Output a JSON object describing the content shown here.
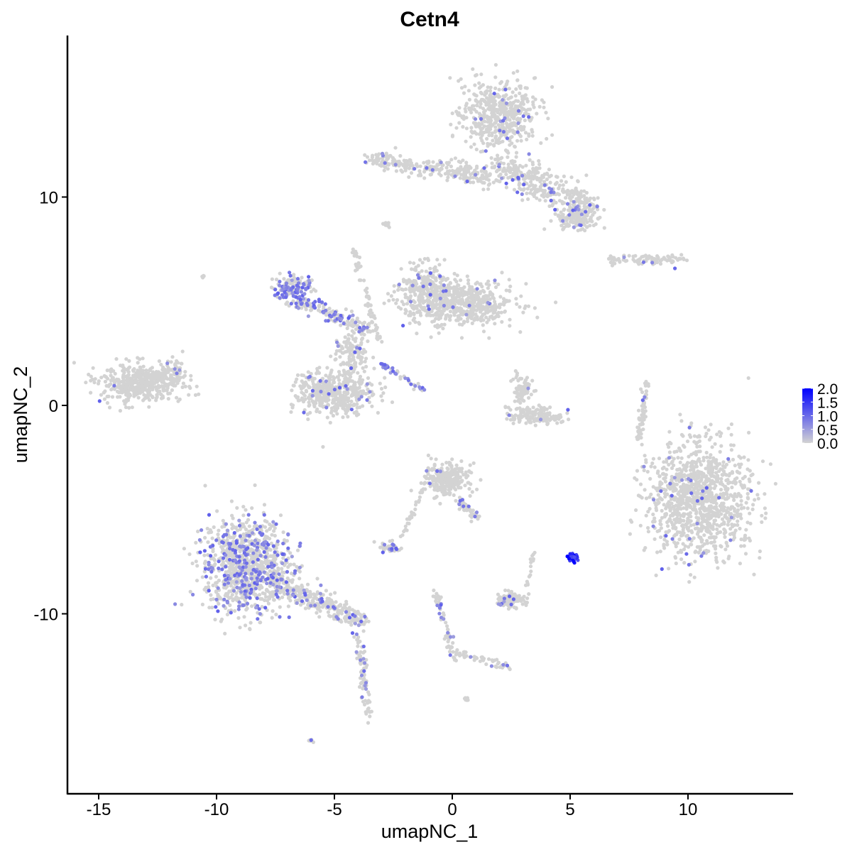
{
  "chart_data": {
    "type": "scatter",
    "title": "Cetn4",
    "xlabel": "umapNC_1",
    "ylabel": "umapNC_2",
    "xlim": [
      -16.3,
      14.4
    ],
    "ylim": [
      -18.6,
      17.8
    ],
    "x_ticks": [
      -15,
      -10,
      -5,
      0,
      5,
      10
    ],
    "x_tick_labels": [
      "-15",
      "-10",
      "-5",
      "0",
      "5",
      "10"
    ],
    "y_ticks": [
      -10,
      0,
      10
    ],
    "y_tick_labels": [
      "-10",
      "0",
      "10"
    ],
    "grid": false,
    "color_scale": {
      "low": "#d3d3d3",
      "high": "#0000ff",
      "min": 0,
      "max": 2.0,
      "ticks": [
        0,
        0.5,
        1.0,
        1.5,
        2.0
      ],
      "tick_labels": [
        "0.0",
        "0.5",
        "1.0",
        "1.5",
        "2.0"
      ]
    },
    "legend_placement": "right",
    "cell_regions": [
      {
        "center": [
          1.9,
          14.0
        ],
        "spread": [
          1.3,
          1.4
        ],
        "n": 500,
        "expr_frac": 0.03
      },
      {
        "from": [
          -3.5,
          11.8
        ],
        "to": [
          1.5,
          11.0
        ],
        "width": 0.45,
        "n": 260,
        "expr_frac": 0.03
      },
      {
        "from": [
          2.0,
          11.6
        ],
        "to": [
          5.8,
          9.4
        ],
        "width": 0.8,
        "n": 360,
        "expr_frac": 0.05
      },
      {
        "center": [
          5.3,
          9.0
        ],
        "spread": [
          0.7,
          0.6
        ],
        "n": 120,
        "expr_frac": 0.05
      },
      {
        "center": [
          -2.8,
          8.7
        ],
        "spread": [
          0.15,
          0.15
        ],
        "n": 10,
        "expr_frac": 0
      },
      {
        "from": [
          6.7,
          7.0
        ],
        "to": [
          9.9,
          7.0
        ],
        "width": 0.25,
        "n": 90,
        "expr_frac": 0.02
      },
      {
        "center": [
          0.3,
          4.9
        ],
        "spread": [
          1.9,
          0.9
        ],
        "n": 600,
        "expr_frac": 0.02
      },
      {
        "center": [
          -1.0,
          5.6
        ],
        "spread": [
          0.9,
          1.0
        ],
        "n": 200,
        "expr_frac": 0.03
      },
      {
        "from": [
          -4.2,
          7.5
        ],
        "to": [
          -3.1,
          3.0
        ],
        "width": 0.2,
        "n": 60,
        "expr_frac": 0
      },
      {
        "center": [
          -6.8,
          5.6
        ],
        "spread": [
          0.6,
          0.5
        ],
        "n": 160,
        "expr_frac": 0.4
      },
      {
        "from": [
          -6.5,
          5.0
        ],
        "to": [
          -3.5,
          3.6
        ],
        "width": 0.35,
        "n": 150,
        "expr_frac": 0.25
      },
      {
        "from": [
          -3.0,
          2.0
        ],
        "to": [
          -1.2,
          0.7
        ],
        "width": 0.15,
        "n": 40,
        "expr_frac": 0.5
      },
      {
        "center": [
          -5.0,
          0.6
        ],
        "spread": [
          1.4,
          0.9
        ],
        "n": 450,
        "expr_frac": 0.04
      },
      {
        "center": [
          -4.3,
          2.5
        ],
        "spread": [
          0.6,
          0.8
        ],
        "n": 120,
        "expr_frac": 0.05
      },
      {
        "center": [
          -13.2,
          1.1
        ],
        "spread": [
          1.4,
          0.75
        ],
        "n": 450,
        "expr_frac": 0.01
      },
      {
        "center": [
          -11.8,
          1.6
        ],
        "spread": [
          0.5,
          0.5
        ],
        "n": 60,
        "expr_frac": 0.05
      },
      {
        "center": [
          3.5,
          -0.5
        ],
        "spread": [
          1.0,
          0.35
        ],
        "n": 150,
        "expr_frac": 0.01
      },
      {
        "center": [
          3.0,
          0.8
        ],
        "spread": [
          0.35,
          0.6
        ],
        "n": 80,
        "expr_frac": 0.02
      },
      {
        "from": [
          7.9,
          -1.6
        ],
        "to": [
          8.3,
          1.2
        ],
        "width": 0.15,
        "n": 60,
        "expr_frac": 0.02
      },
      {
        "center": [
          10.5,
          -4.6
        ],
        "spread": [
          1.8,
          2.3
        ],
        "n": 1100,
        "expr_frac": 0.02
      },
      {
        "center": [
          -0.3,
          -3.6
        ],
        "spread": [
          0.8,
          0.7
        ],
        "n": 250,
        "expr_frac": 0.02
      },
      {
        "from": [
          0.3,
          -4.5
        ],
        "to": [
          1.1,
          -5.5
        ],
        "width": 0.2,
        "n": 50,
        "expr_frac": 0.1
      },
      {
        "center": [
          -2.6,
          -6.8
        ],
        "spread": [
          0.35,
          0.2
        ],
        "n": 50,
        "expr_frac": 0.2
      },
      {
        "from": [
          -2.2,
          -6.5
        ],
        "to": [
          -1.2,
          -4.0
        ],
        "width": 0.12,
        "n": 30,
        "expr_frac": 0
      },
      {
        "center": [
          -8.7,
          -7.7
        ],
        "spread": [
          1.5,
          1.8
        ],
        "n": 1000,
        "expr_frac": 0.2
      },
      {
        "from": [
          -7.5,
          -8.5
        ],
        "to": [
          -3.8,
          -10.4
        ],
        "width": 0.5,
        "n": 300,
        "expr_frac": 0.12
      },
      {
        "from": [
          -4.0,
          -11.0
        ],
        "to": [
          -3.5,
          -15.0
        ],
        "width": 0.2,
        "n": 80,
        "expr_frac": 0.15
      },
      {
        "center": [
          2.5,
          -9.3
        ],
        "spread": [
          0.5,
          0.3
        ],
        "n": 100,
        "expr_frac": 0.1
      },
      {
        "from": [
          3.2,
          -8.8
        ],
        "to": [
          3.4,
          -7.0
        ],
        "width": 0.1,
        "n": 15,
        "expr_frac": 0
      },
      {
        "from": [
          -0.7,
          -9.0
        ],
        "to": [
          0.1,
          -12.2
        ],
        "width": 0.15,
        "n": 60,
        "expr_frac": 0.15
      },
      {
        "from": [
          0.1,
          -11.8
        ],
        "to": [
          2.5,
          -12.6
        ],
        "width": 0.15,
        "n": 50,
        "expr_frac": 0.1
      },
      {
        "center": [
          0.6,
          -14.1
        ],
        "spread": [
          0.08,
          0.08
        ],
        "n": 8,
        "expr_frac": 0
      },
      {
        "center": [
          -6.0,
          -16.1
        ],
        "spread": [
          0.1,
          0.08
        ],
        "n": 8,
        "expr_frac": 0.2
      },
      {
        "center": [
          -10.6,
          6.2
        ],
        "spread": [
          0.08,
          0.08
        ],
        "n": 5,
        "expr_frac": 0
      }
    ],
    "high_expression_cluster": {
      "center": [
        5.1,
        -7.3
      ],
      "spread": [
        0.18,
        0.18
      ],
      "n": 40,
      "value_range": [
        1.2,
        2.0
      ]
    }
  }
}
